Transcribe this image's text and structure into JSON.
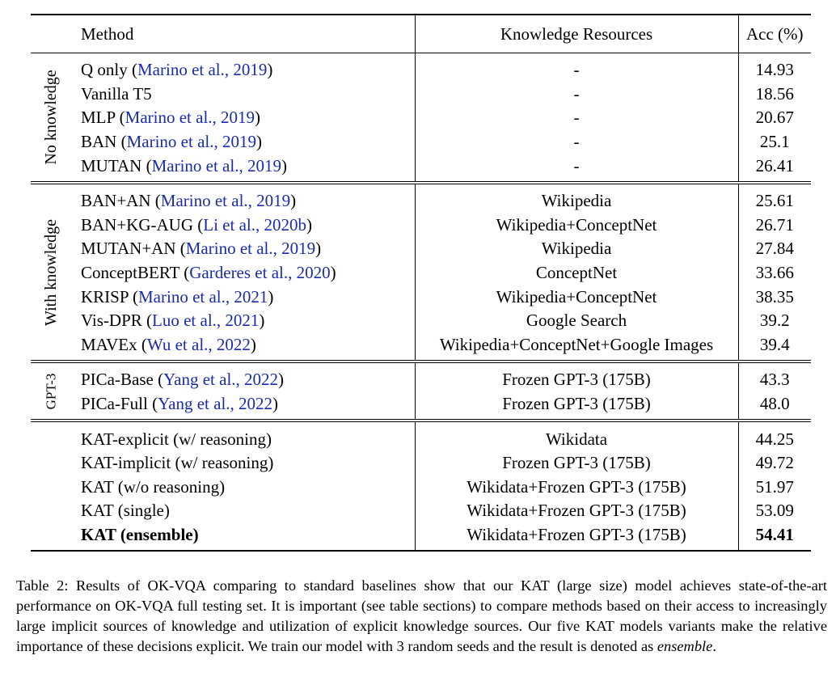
{
  "header": {
    "method": "Method",
    "resources": "Knowledge Resources",
    "accuracy": "Acc (%)"
  },
  "groups": [
    {
      "label": "No knowledge",
      "rows": [
        {
          "method": "Q only",
          "cite": "Marino et al., 2019",
          "resources": "-",
          "acc": "14.93"
        },
        {
          "method": "Vanilla T5",
          "cite": "",
          "resources": "-",
          "acc": "18.56"
        },
        {
          "method": "MLP",
          "cite": "Marino et al., 2019",
          "resources": "-",
          "acc": "20.67"
        },
        {
          "method": "BAN",
          "cite": "Marino et al., 2019",
          "resources": "-",
          "acc": "25.1"
        },
        {
          "method": "MUTAN",
          "cite": "Marino et al., 2019",
          "resources": "-",
          "acc": "26.41"
        }
      ]
    },
    {
      "label": "With knowledge",
      "rows": [
        {
          "method": "BAN+AN",
          "cite": "Marino et al., 2019",
          "resources": "Wikipedia",
          "acc": "25.61"
        },
        {
          "method": "BAN+KG-AUG",
          "cite": "Li et al., 2020b",
          "resources": "Wikipedia+ConceptNet",
          "acc": "26.71"
        },
        {
          "method": "MUTAN+AN",
          "cite": "Marino et al., 2019",
          "resources": "Wikipedia",
          "acc": "27.84"
        },
        {
          "method": "ConceptBERT",
          "cite": "Garderes et al., 2020",
          "resources": "ConceptNet",
          "acc": "33.66"
        },
        {
          "method": "KRISP",
          "cite": "Marino et al., 2021",
          "resources": "Wikipedia+ConceptNet",
          "acc": "38.35"
        },
        {
          "method": "Vis-DPR",
          "cite": "Luo et al., 2021",
          "resources": "Google Search",
          "acc": "39.2"
        },
        {
          "method": "MAVEx",
          "cite": "Wu et al., 2022",
          "resources": "Wikipedia+ConceptNet+Google Images",
          "acc": "39.4"
        }
      ]
    },
    {
      "label": "GPT-3",
      "rows": [
        {
          "method": "PICa-Base",
          "cite": "Yang et al., 2022",
          "resources": "Frozen GPT-3 (175B)",
          "acc": "43.3"
        },
        {
          "method": "PICa-Full",
          "cite": "Yang et al., 2022",
          "resources": "Frozen GPT-3 (175B)",
          "acc": "48.0"
        }
      ]
    },
    {
      "label": "",
      "rows": [
        {
          "method": "KAT-explicit (w/ reasoning)",
          "cite": "",
          "resources": "Wikidata",
          "acc": "44.25"
        },
        {
          "method": "KAT-implicit (w/ reasoning)",
          "cite": "",
          "resources": "Frozen GPT-3 (175B)",
          "acc": "49.72"
        },
        {
          "method": "KAT (w/o reasoning)",
          "cite": "",
          "resources": "Wikidata+Frozen GPT-3 (175B)",
          "acc": "51.97"
        },
        {
          "method": "KAT (single)",
          "cite": "",
          "resources": "Wikidata+Frozen GPT-3 (175B)",
          "acc": "53.09"
        },
        {
          "method": "KAT (ensemble)",
          "cite": "",
          "resources": "Wikidata+Frozen GPT-3 (175B)",
          "acc": "54.41",
          "bold": true
        }
      ]
    }
  ],
  "caption": {
    "text_before": "Table 2: Results of OK-VQA comparing to standard baselines show that our KAT (large size) model achieves state-of-the-art performance on OK-VQA full testing set. It is important (see table sections) to compare methods based on their access to increasingly large implicit sources of knowledge and utilization of explicit knowledge sources. Our five KAT models variants make the relative importance of these decisions explicit. We train our model with 3 random seeds and the result is denoted as ",
    "emphasis": "ensemble",
    "text_after": "."
  }
}
